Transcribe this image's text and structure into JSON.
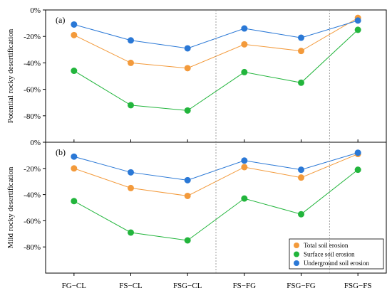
{
  "chart_data": {
    "type": "line",
    "categories": [
      "FG−CL",
      "FS−CL",
      "FSG−CL",
      "FS−FG",
      "FSG−FG",
      "FSG−FS"
    ],
    "ylim": [
      -100,
      0
    ],
    "y_ticks": [
      "0%",
      "-20%",
      "-40%",
      "-60%",
      "-80%"
    ],
    "grid": false,
    "legend_position": "bottom-right",
    "panels": [
      {
        "label": "(a)",
        "ylabel": "Potential rocky desertification",
        "series": [
          {
            "name": "Total soil erosion",
            "color": "#f39a3b",
            "values": [
              -19,
              -40,
              -44,
              -26,
              -31,
              -6
            ]
          },
          {
            "name": "Surface soil erosion",
            "color": "#22b53c",
            "values": [
              -46,
              -72,
              -76,
              -47,
              -55,
              -15
            ]
          },
          {
            "name": "Underground soil erosion",
            "color": "#2a78d6",
            "values": [
              -11,
              -23,
              -29,
              -14,
              -21,
              -8
            ]
          }
        ]
      },
      {
        "label": "(b)",
        "ylabel": "Mild rocky desertification",
        "series": [
          {
            "name": "Total soil erosion",
            "color": "#f39a3b",
            "values": [
              -20,
              -35,
              -41,
              -19,
              -27,
              -9
            ]
          },
          {
            "name": "Surface soil erosion",
            "color": "#22b53c",
            "values": [
              -45,
              -69,
              -75,
              -43,
              -55,
              -21
            ]
          },
          {
            "name": "Underground soil erosion",
            "color": "#2a78d6",
            "values": [
              -11,
              -23,
              -29,
              -14,
              -21,
              -8
            ]
          }
        ]
      }
    ],
    "legend": [
      "Total soil erosion",
      "Surface soil erosion",
      "Underground soil erosion"
    ]
  }
}
